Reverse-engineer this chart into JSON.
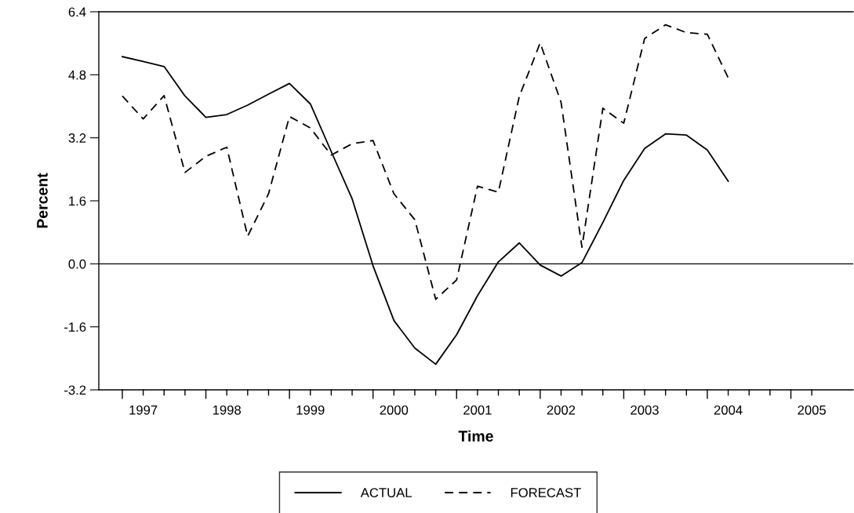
{
  "chart_data": {
    "type": "line",
    "xlabel": "Time",
    "ylabel": "Percent",
    "categories": [
      null,
      "1997",
      null,
      null,
      null,
      "1998",
      null,
      null,
      null,
      "1999",
      null,
      null,
      null,
      "2000",
      null,
      null,
      null,
      "2001",
      null,
      null,
      null,
      "2002",
      null,
      null,
      null,
      "2003",
      null,
      null,
      null,
      "2004",
      null,
      null,
      null,
      "2005"
    ],
    "series": [
      {
        "name": "ACTUAL",
        "color": "#000000",
        "line_style": "solid",
        "values": [
          5.26,
          5.14,
          5.01,
          4.26,
          3.72,
          3.79,
          4.03,
          4.31,
          4.58,
          4.06,
          2.85,
          1.65,
          -0.05,
          -1.44,
          -2.14,
          -2.55,
          -1.8,
          -0.81,
          0.05,
          0.53,
          -0.03,
          -0.31,
          0.03,
          1.05,
          2.12,
          2.93,
          3.3,
          3.27,
          2.89,
          2.1,
          null,
          null,
          null,
          null
        ]
      },
      {
        "name": "FORECAST",
        "color": "#000000",
        "line_style": "dashed",
        "values": [
          4.26,
          3.68,
          4.27,
          2.32,
          2.73,
          2.96,
          0.7,
          1.78,
          3.74,
          3.45,
          2.76,
          3.05,
          3.13,
          1.78,
          1.12,
          -0.9,
          -0.41,
          1.97,
          1.82,
          4.25,
          5.61,
          4.1,
          0.42,
          3.95,
          3.57,
          5.72,
          6.07,
          5.87,
          5.83,
          4.72,
          null,
          null,
          null,
          null
        ]
      }
    ],
    "ylim": [
      -3.2,
      6.4
    ],
    "yticks": [
      {
        "value": -3.2,
        "label": "-3.2"
      },
      {
        "value": -1.6,
        "label": "-1.6"
      },
      {
        "value": 0,
        "label": "0.0"
      },
      {
        "value": 1.6,
        "label": "1.6"
      },
      {
        "value": 3.2,
        "label": "3.2"
      },
      {
        "value": 4.8,
        "label": "4.8"
      },
      {
        "value": 6.4,
        "label": "6.4"
      }
    ],
    "ref_lines": [
      {
        "axis": "y",
        "value": 0,
        "color": "#000000",
        "line_style": "solid"
      }
    ],
    "grid": false,
    "legend": "bottom"
  }
}
